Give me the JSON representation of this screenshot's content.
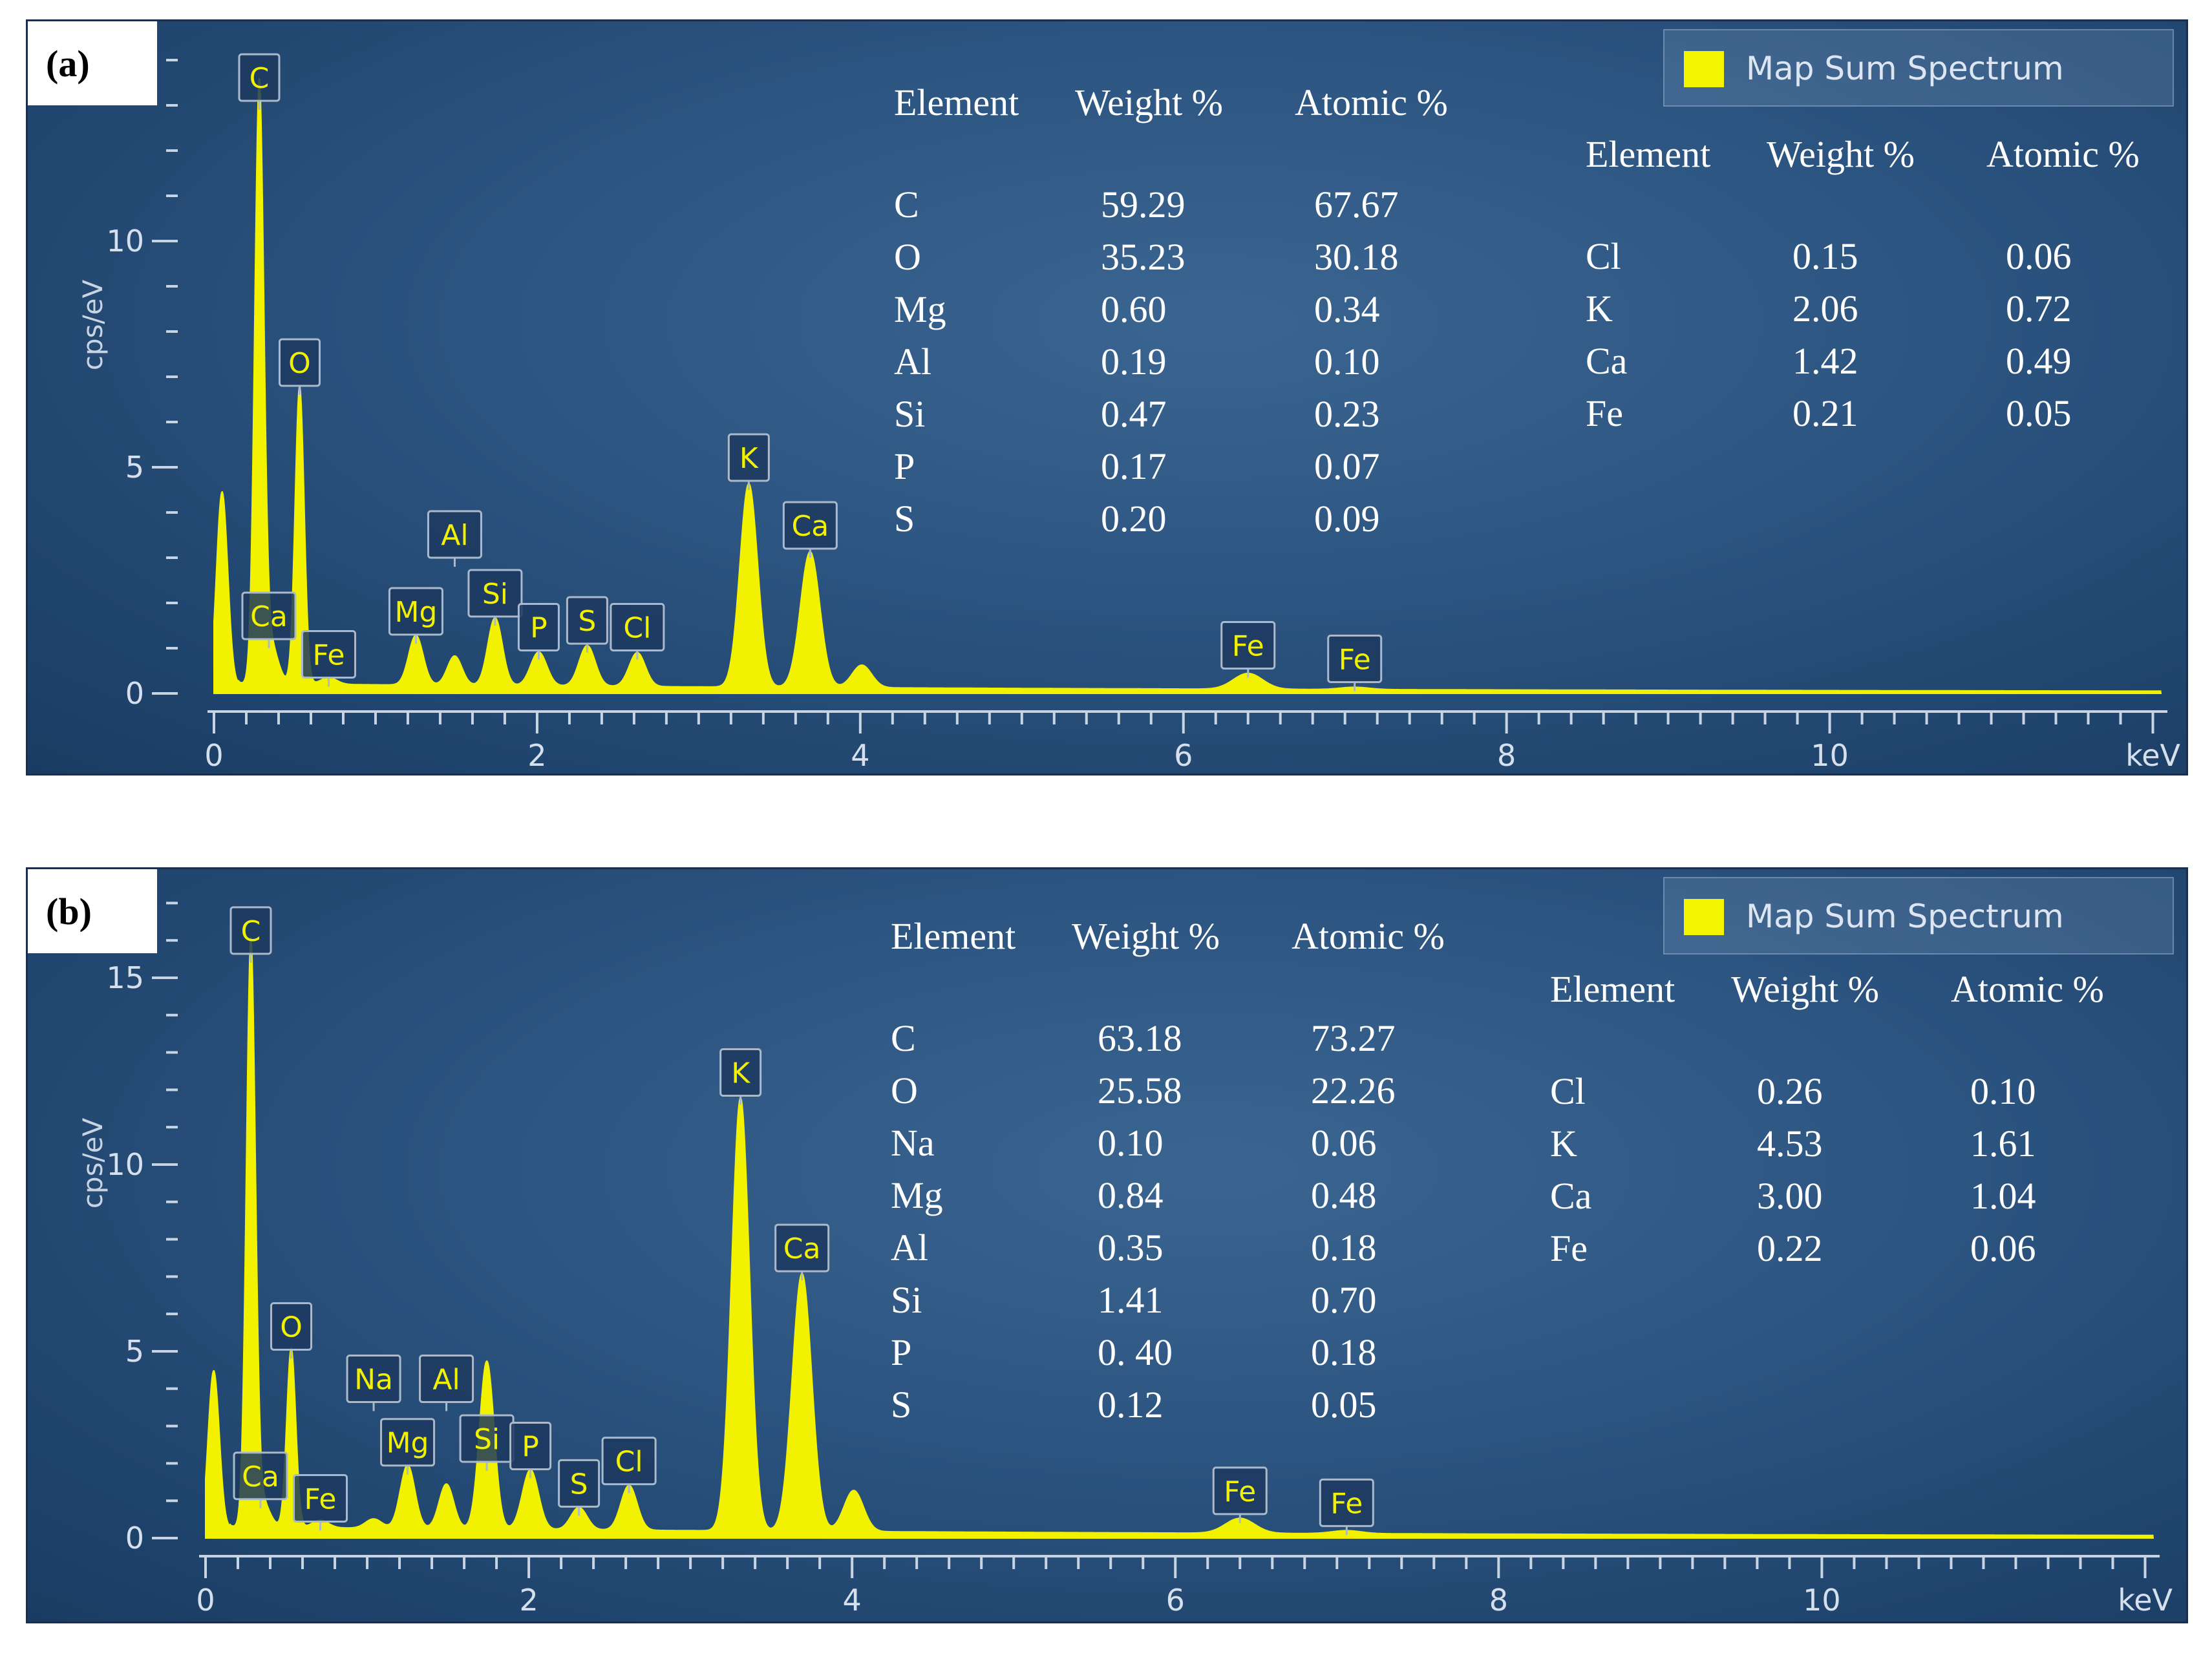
{
  "chart_data": [
    {
      "type": "line",
      "panel_label": "(a)",
      "legend": "Map Sum Spectrum",
      "xlabel": "keV",
      "ylabel": "cps/eV",
      "xlim": [
        0,
        12.05
      ],
      "ylim": [
        0,
        14.0
      ],
      "x_ticks": [
        "0",
        "2",
        "4",
        "6",
        "8",
        "10"
      ],
      "y_ticks": [
        "0",
        "5",
        "10"
      ],
      "line_color": "#f2f200",
      "peaks": [
        {
          "x": 0.05,
          "y": 4.4,
          "w": 0.035
        },
        {
          "x": 0.28,
          "y": 12.9,
          "w": 0.028
        },
        {
          "x": 0.34,
          "y": 1.0,
          "w": 0.05
        },
        {
          "x": 0.53,
          "y": 6.6,
          "w": 0.028
        },
        {
          "x": 0.71,
          "y": 0.15,
          "w": 0.05
        },
        {
          "x": 1.25,
          "y": 1.1,
          "w": 0.045
        },
        {
          "x": 1.49,
          "y": 0.65,
          "w": 0.045
        },
        {
          "x": 1.74,
          "y": 1.5,
          "w": 0.045
        },
        {
          "x": 2.01,
          "y": 0.75,
          "w": 0.05
        },
        {
          "x": 2.31,
          "y": 0.9,
          "w": 0.05
        },
        {
          "x": 2.62,
          "y": 0.75,
          "w": 0.05
        },
        {
          "x": 3.31,
          "y": 4.5,
          "w": 0.055
        },
        {
          "x": 3.69,
          "y": 3.0,
          "w": 0.06
        },
        {
          "x": 4.01,
          "y": 0.5,
          "w": 0.06
        },
        {
          "x": 6.4,
          "y": 0.35,
          "w": 0.09
        },
        {
          "x": 7.06,
          "y": 0.05,
          "w": 0.09
        }
      ],
      "background": 0.18,
      "peak_labels": [
        {
          "text": "C",
          "x": 0.28,
          "y": 12.9
        },
        {
          "text": "O",
          "x": 0.53,
          "y": 6.6
        },
        {
          "text": "Ca",
          "x": 0.34,
          "y": 1.0
        },
        {
          "text": "Fe",
          "x": 0.71,
          "y": 0.15
        },
        {
          "text": "Mg",
          "x": 1.25,
          "y": 1.1
        },
        {
          "text": "Al",
          "x": 1.49,
          "y": 2.8
        },
        {
          "text": "Si",
          "x": 1.74,
          "y": 1.5
        },
        {
          "text": "P",
          "x": 2.01,
          "y": 0.75
        },
        {
          "text": "S",
          "x": 2.31,
          "y": 0.9
        },
        {
          "text": "Cl",
          "x": 2.62,
          "y": 0.75
        },
        {
          "text": "K",
          "x": 3.31,
          "y": 4.5
        },
        {
          "text": "Ca",
          "x": 3.69,
          "y": 3.0
        },
        {
          "text": "Fe",
          "x": 6.4,
          "y": 0.35
        },
        {
          "text": "Fe",
          "x": 7.06,
          "y": 0.05
        }
      ],
      "table_left": {
        "headers": [
          "Element",
          "Weight %",
          "Atomic %"
        ],
        "rows": [
          [
            "C",
            "59.29",
            "67.67"
          ],
          [
            "O",
            "35.23",
            "30.18"
          ],
          [
            "Mg",
            "0.60",
            "0.34"
          ],
          [
            "Al",
            "0.19",
            "0.10"
          ],
          [
            "Si",
            "0.47",
            "0.23"
          ],
          [
            "P",
            "0.17",
            "0.07"
          ],
          [
            "S",
            "0.20",
            "0.09"
          ]
        ]
      },
      "table_right": {
        "headers": [
          "Element",
          "Weight %",
          "Atomic %"
        ],
        "rows": [
          [
            "Cl",
            "0.15",
            "0.06"
          ],
          [
            "K",
            "2.06",
            "0.72"
          ],
          [
            "Ca",
            "1.42",
            "0.49"
          ],
          [
            "Fe",
            "0.21",
            "0.05"
          ]
        ]
      }
    },
    {
      "type": "line",
      "panel_label": "(b)",
      "legend": "Map Sum Spectrum",
      "xlabel": "keV",
      "ylabel": "cps/eV",
      "xlim": [
        0,
        12.05
      ],
      "ylim": [
        0,
        17.3
      ],
      "x_ticks": [
        "0",
        "2",
        "4",
        "6",
        "8",
        "10"
      ],
      "y_ticks": [
        "0",
        "5",
        "10",
        "15"
      ],
      "line_color": "#f2f200",
      "peaks": [
        {
          "x": 0.05,
          "y": 4.4,
          "w": 0.035
        },
        {
          "x": 0.28,
          "y": 15.4,
          "w": 0.028
        },
        {
          "x": 0.34,
          "y": 0.8,
          "w": 0.05
        },
        {
          "x": 0.53,
          "y": 4.8,
          "w": 0.028
        },
        {
          "x": 0.71,
          "y": 0.2,
          "w": 0.05
        },
        {
          "x": 1.04,
          "y": 0.25,
          "w": 0.05
        },
        {
          "x": 1.25,
          "y": 1.7,
          "w": 0.045
        },
        {
          "x": 1.49,
          "y": 1.2,
          "w": 0.045
        },
        {
          "x": 1.74,
          "y": 4.5,
          "w": 0.045
        },
        {
          "x": 2.01,
          "y": 1.6,
          "w": 0.05
        },
        {
          "x": 2.31,
          "y": 0.6,
          "w": 0.05
        },
        {
          "x": 2.62,
          "y": 1.2,
          "w": 0.05
        },
        {
          "x": 3.31,
          "y": 11.6,
          "w": 0.055
        },
        {
          "x": 3.69,
          "y": 6.9,
          "w": 0.06
        },
        {
          "x": 4.01,
          "y": 1.1,
          "w": 0.06
        },
        {
          "x": 6.4,
          "y": 0.4,
          "w": 0.09
        },
        {
          "x": 7.06,
          "y": 0.08,
          "w": 0.09
        }
      ],
      "background": 0.25,
      "peak_labels": [
        {
          "text": "C",
          "x": 0.28,
          "y": 15.4
        },
        {
          "text": "O",
          "x": 0.53,
          "y": 4.8
        },
        {
          "text": "Ca",
          "x": 0.34,
          "y": 0.8
        },
        {
          "text": "Fe",
          "x": 0.71,
          "y": 0.2
        },
        {
          "text": "Na",
          "x": 1.04,
          "y": 3.4
        },
        {
          "text": "Mg",
          "x": 1.25,
          "y": 1.7
        },
        {
          "text": "Al",
          "x": 1.49,
          "y": 3.4
        },
        {
          "text": "Si",
          "x": 1.74,
          "y": 1.8
        },
        {
          "text": "P",
          "x": 2.01,
          "y": 1.6
        },
        {
          "text": "S",
          "x": 2.31,
          "y": 0.6
        },
        {
          "text": "Cl",
          "x": 2.62,
          "y": 1.2
        },
        {
          "text": "K",
          "x": 3.31,
          "y": 11.6
        },
        {
          "text": "Ca",
          "x": 3.69,
          "y": 6.9
        },
        {
          "text": "Fe",
          "x": 6.4,
          "y": 0.4
        },
        {
          "text": "Fe",
          "x": 7.06,
          "y": 0.08
        }
      ],
      "table_left": {
        "headers": [
          "Element",
          "Weight %",
          "Atomic %"
        ],
        "rows": [
          [
            "C",
            "63.18",
            "73.27"
          ],
          [
            "O",
            "25.58",
            "22.26"
          ],
          [
            "Na",
            "0.10",
            "0.06"
          ],
          [
            "Mg",
            "0.84",
            "0.48"
          ],
          [
            "Al",
            "0.35",
            "0.18"
          ],
          [
            "Si",
            "1.41",
            "0.70"
          ],
          [
            "P",
            "0. 40",
            "0.18"
          ],
          [
            "S",
            "0.12",
            "0.05"
          ]
        ]
      },
      "table_right": {
        "headers": [
          "Element",
          "Weight %",
          "Atomic %"
        ],
        "rows": [
          [
            "Cl",
            "0.26",
            "0.10"
          ],
          [
            "K",
            "4.53",
            "1.61"
          ],
          [
            "Ca",
            "3.00",
            "1.04"
          ],
          [
            "Fe",
            "0.22",
            "0.06"
          ]
        ]
      }
    }
  ]
}
